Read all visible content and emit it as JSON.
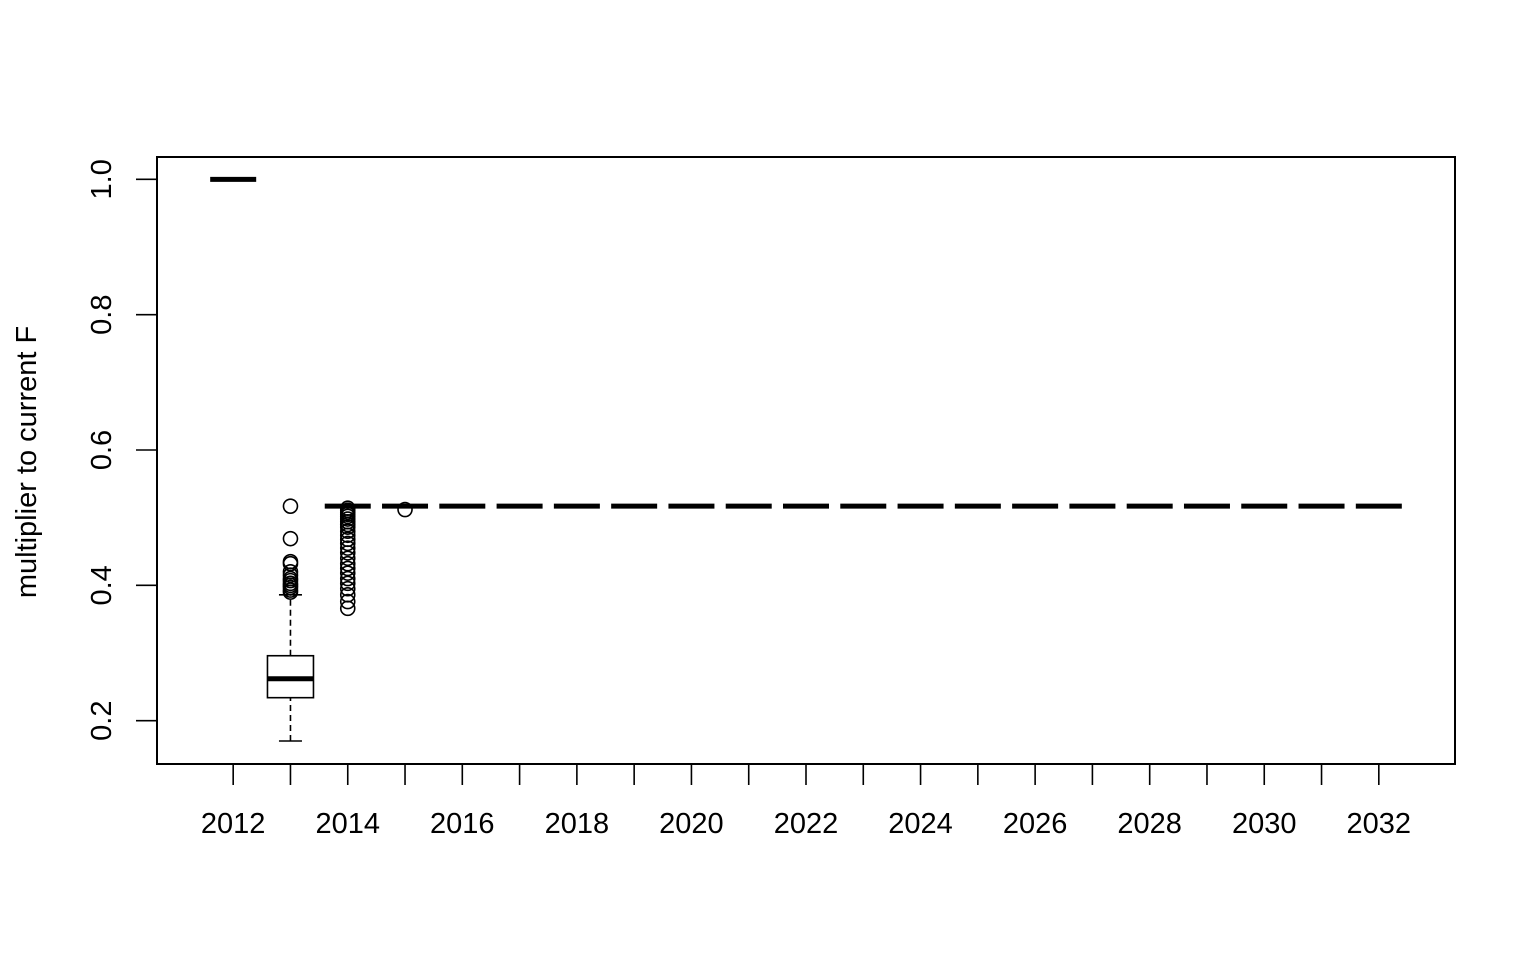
{
  "chart_data": {
    "type": "boxplot",
    "title": "",
    "xlabel": "",
    "ylabel": "multiplier to current F",
    "x_ticks": [
      2012,
      2014,
      2016,
      2018,
      2020,
      2022,
      2024,
      2026,
      2028,
      2030,
      2032
    ],
    "x_tick_labels": [
      "2012",
      "2014",
      "2016",
      "2018",
      "2020",
      "2022",
      "2024",
      "2026",
      "2028",
      "2030",
      "2032"
    ],
    "y_ticks": [
      0.2,
      0.4,
      0.6,
      0.8,
      1.0
    ],
    "y_tick_labels": [
      "0.2",
      "0.4",
      "0.6",
      "0.8",
      "1.0"
    ],
    "xlim": [
      2010.67,
      2033.33
    ],
    "ylim": [
      0.136,
      1.033
    ],
    "grid": false,
    "legend": "none",
    "boxes": [
      {
        "year": 2012,
        "whisker_low": 1.0,
        "q1": 1.0,
        "median": 1.0,
        "q3": 1.0,
        "whisker_high": 1.0,
        "outliers": []
      },
      {
        "year": 2013,
        "whisker_low": 0.17,
        "q1": 0.234,
        "median": 0.262,
        "q3": 0.296,
        "whisker_high": 0.386,
        "outliers": [
          0.39,
          0.393,
          0.397,
          0.4,
          0.403,
          0.407,
          0.41,
          0.415,
          0.42,
          0.432,
          0.435,
          0.469,
          0.517
        ]
      },
      {
        "year": 2014,
        "whisker_low": 0.517,
        "q1": 0.517,
        "median": 0.517,
        "q3": 0.517,
        "whisker_high": 0.517,
        "outliers": [
          0.366,
          0.376,
          0.386,
          0.395,
          0.403,
          0.41,
          0.418,
          0.425,
          0.432,
          0.44,
          0.448,
          0.455,
          0.462,
          0.468,
          0.474,
          0.48,
          0.486,
          0.49,
          0.494,
          0.498,
          0.502,
          0.505,
          0.508,
          0.511,
          0.514
        ]
      },
      {
        "year": 2015,
        "whisker_low": 0.517,
        "q1": 0.517,
        "median": 0.517,
        "q3": 0.517,
        "whisker_high": 0.517,
        "outliers": [
          0.512
        ]
      },
      {
        "year": 2016,
        "whisker_low": 0.517,
        "q1": 0.517,
        "median": 0.517,
        "q3": 0.517,
        "whisker_high": 0.517,
        "outliers": []
      },
      {
        "year": 2017,
        "whisker_low": 0.517,
        "q1": 0.517,
        "median": 0.517,
        "q3": 0.517,
        "whisker_high": 0.517,
        "outliers": []
      },
      {
        "year": 2018,
        "whisker_low": 0.517,
        "q1": 0.517,
        "median": 0.517,
        "q3": 0.517,
        "whisker_high": 0.517,
        "outliers": []
      },
      {
        "year": 2019,
        "whisker_low": 0.517,
        "q1": 0.517,
        "median": 0.517,
        "q3": 0.517,
        "whisker_high": 0.517,
        "outliers": []
      },
      {
        "year": 2020,
        "whisker_low": 0.517,
        "q1": 0.517,
        "median": 0.517,
        "q3": 0.517,
        "whisker_high": 0.517,
        "outliers": []
      },
      {
        "year": 2021,
        "whisker_low": 0.517,
        "q1": 0.517,
        "median": 0.517,
        "q3": 0.517,
        "whisker_high": 0.517,
        "outliers": []
      },
      {
        "year": 2022,
        "whisker_low": 0.517,
        "q1": 0.517,
        "median": 0.517,
        "q3": 0.517,
        "whisker_high": 0.517,
        "outliers": []
      },
      {
        "year": 2023,
        "whisker_low": 0.517,
        "q1": 0.517,
        "median": 0.517,
        "q3": 0.517,
        "whisker_high": 0.517,
        "outliers": []
      },
      {
        "year": 2024,
        "whisker_low": 0.517,
        "q1": 0.517,
        "median": 0.517,
        "q3": 0.517,
        "whisker_high": 0.517,
        "outliers": []
      },
      {
        "year": 2025,
        "whisker_low": 0.517,
        "q1": 0.517,
        "median": 0.517,
        "q3": 0.517,
        "whisker_high": 0.517,
        "outliers": []
      },
      {
        "year": 2026,
        "whisker_low": 0.517,
        "q1": 0.517,
        "median": 0.517,
        "q3": 0.517,
        "whisker_high": 0.517,
        "outliers": []
      },
      {
        "year": 2027,
        "whisker_low": 0.517,
        "q1": 0.517,
        "median": 0.517,
        "q3": 0.517,
        "whisker_high": 0.517,
        "outliers": []
      },
      {
        "year": 2028,
        "whisker_low": 0.517,
        "q1": 0.517,
        "median": 0.517,
        "q3": 0.517,
        "whisker_high": 0.517,
        "outliers": []
      },
      {
        "year": 2029,
        "whisker_low": 0.517,
        "q1": 0.517,
        "median": 0.517,
        "q3": 0.517,
        "whisker_high": 0.517,
        "outliers": []
      },
      {
        "year": 2030,
        "whisker_low": 0.517,
        "q1": 0.517,
        "median": 0.517,
        "q3": 0.517,
        "whisker_high": 0.517,
        "outliers": []
      },
      {
        "year": 2031,
        "whisker_low": 0.517,
        "q1": 0.517,
        "median": 0.517,
        "q3": 0.517,
        "whisker_high": 0.517,
        "outliers": []
      },
      {
        "year": 2032,
        "whisker_low": 0.517,
        "q1": 0.517,
        "median": 0.517,
        "q3": 0.517,
        "whisker_high": 0.517,
        "outliers": []
      }
    ]
  },
  "colors": {
    "ink": "#000000",
    "background": "#ffffff"
  }
}
